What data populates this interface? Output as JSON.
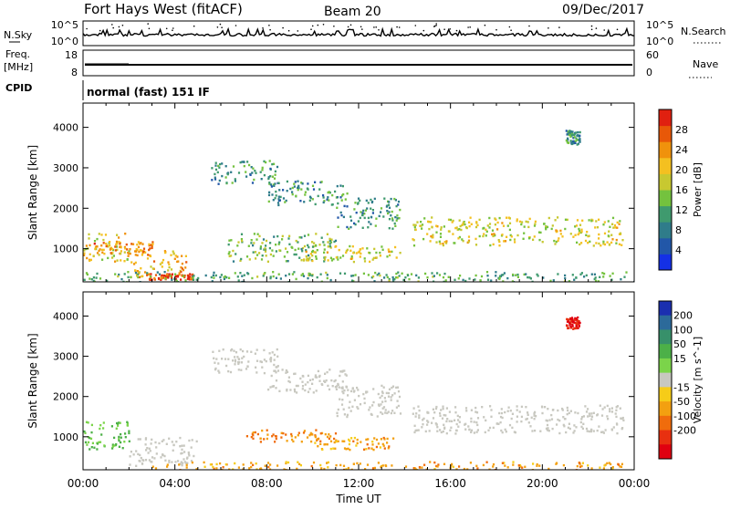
{
  "header": {
    "site": "Fort Hays West (fitACF)",
    "beam": "Beam 20",
    "date": "09/Dec/2017"
  },
  "top_panel": {
    "left_label": "N.Sky",
    "left_ticks": [
      "10^5",
      "10^0"
    ],
    "right_label": "N.Search",
    "right_ticks": [
      "10^5",
      "10^0"
    ]
  },
  "freq_panel": {
    "left_label_1": "Freq.",
    "left_label_2": "[MHz]",
    "left_ticks": [
      "18",
      "8"
    ],
    "right_label": "Nave",
    "right_ticks": [
      "60",
      "0"
    ]
  },
  "cpid_panel": {
    "label": "CPID",
    "text": "normal (fast) 151 IF"
  },
  "chart_data": [
    {
      "type": "heatmap",
      "name": "power",
      "ylabel": "Slant Range [km]",
      "ylim": [
        180,
        4600
      ],
      "yticks": [
        1000,
        2000,
        3000,
        4000
      ],
      "colorbar": {
        "label": "Power [dB]",
        "range": [
          0,
          32
        ],
        "ticks": [
          4,
          8,
          12,
          16,
          20,
          24,
          28
        ],
        "colors": [
          "#1430e6",
          "#2257a8",
          "#2f7c8a",
          "#3f9a6e",
          "#74c23e",
          "#c8c830",
          "#f4c020",
          "#f0920c",
          "#e85808",
          "#e02010"
        ]
      },
      "echo_regions": [
        {
          "t0": 0.0,
          "t1": 2.0,
          "r0": 700,
          "r1": 1400,
          "power": 20
        },
        {
          "t0": 0.3,
          "t1": 3.0,
          "r0": 900,
          "r1": 1200,
          "power": 24
        },
        {
          "t0": 2.0,
          "t1": 4.5,
          "r0": 300,
          "r1": 1000,
          "power": 22
        },
        {
          "t0": 2.8,
          "t1": 4.8,
          "r0": 250,
          "r1": 400,
          "power": 28
        },
        {
          "t0": 5.5,
          "t1": 8.5,
          "r0": 2600,
          "r1": 3200,
          "power": 10
        },
        {
          "t0": 8.0,
          "t1": 11.5,
          "r0": 2100,
          "r1": 2700,
          "power": 10
        },
        {
          "t0": 11.0,
          "t1": 13.8,
          "r0": 1500,
          "r1": 2300,
          "power": 10
        },
        {
          "t0": 6.3,
          "t1": 11.0,
          "r0": 700,
          "r1": 1400,
          "power": 14
        },
        {
          "t0": 9.5,
          "t1": 13.8,
          "r0": 700,
          "r1": 1100,
          "power": 18
        },
        {
          "t0": 14.3,
          "t1": 23.5,
          "r0": 1100,
          "r1": 1800,
          "power": 18
        },
        {
          "t0": 21.0,
          "t1": 21.6,
          "r0": 3600,
          "r1": 3950,
          "power": 10
        },
        {
          "t0": 0.0,
          "t1": 24.0,
          "r0": 200,
          "r1": 450,
          "power": 12
        }
      ]
    },
    {
      "type": "heatmap",
      "name": "velocity",
      "xlabel": "Time UT",
      "ylabel": "Slant Range [km]",
      "xlim": [
        0,
        24
      ],
      "xtick_labels": [
        "00:00",
        "04:00",
        "08:00",
        "12:00",
        "16:00",
        "20:00",
        "00:00"
      ],
      "ylim": [
        180,
        4600
      ],
      "yticks": [
        1000,
        2000,
        3000,
        4000
      ],
      "colorbar": {
        "label": "Velocity [m s^-1]",
        "ticks": [
          200,
          100,
          50,
          15,
          -15,
          -50,
          -100,
          -200
        ],
        "colors": [
          "#1b2fb0",
          "#2c6a9a",
          "#37906a",
          "#4cb048",
          "#7bd44a",
          "#c8c8c0",
          "#f6cc18",
          "#f3a010",
          "#f06c0c",
          "#e83010",
          "#e00010"
        ]
      },
      "echo_regions": [
        {
          "t0": 0.0,
          "t1": 2.0,
          "r0": 700,
          "r1": 1400,
          "velocity": 30
        },
        {
          "t0": 2.0,
          "t1": 5.0,
          "r0": 300,
          "r1": 1000,
          "velocity": 0
        },
        {
          "t0": 5.5,
          "t1": 8.5,
          "r0": 2600,
          "r1": 3200,
          "velocity": 0
        },
        {
          "t0": 8.0,
          "t1": 11.5,
          "r0": 2100,
          "r1": 2700,
          "velocity": 0
        },
        {
          "t0": 11.0,
          "t1": 13.8,
          "r0": 1500,
          "r1": 2300,
          "velocity": 0
        },
        {
          "t0": 7.0,
          "t1": 11.0,
          "r0": 900,
          "r1": 1200,
          "velocity": -50
        },
        {
          "t0": 10.0,
          "t1": 13.5,
          "r0": 700,
          "r1": 1000,
          "velocity": -40
        },
        {
          "t0": 14.3,
          "t1": 23.5,
          "r0": 1100,
          "r1": 1800,
          "velocity": 0
        },
        {
          "t0": 3.0,
          "t1": 23.5,
          "r0": 200,
          "r1": 400,
          "velocity": -40
        },
        {
          "t0": 21.0,
          "t1": 21.6,
          "r0": 3700,
          "r1": 4000,
          "velocity": -200
        }
      ]
    }
  ]
}
